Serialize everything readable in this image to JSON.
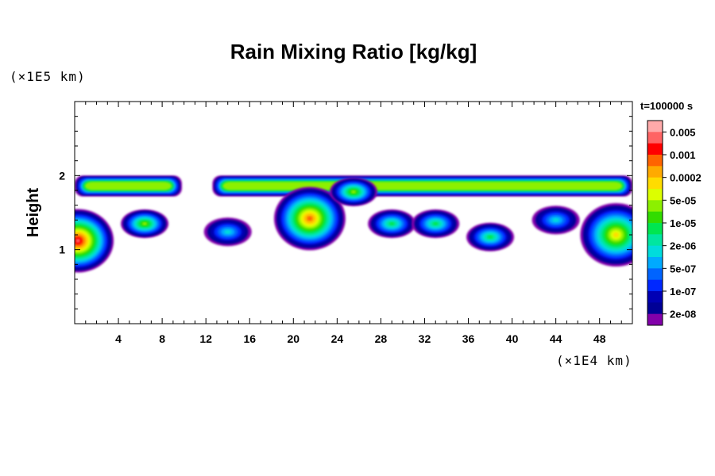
{
  "chart_data": {
    "type": "heatmap",
    "title": "Rain Mixing Ratio [kg/kg]",
    "xlabel": "",
    "ylabel": "Height",
    "x_unit": "(×1E4 km)",
    "y_unit": "(×1E5 km)",
    "time_label": "t=100000 s",
    "xlim": [
      0,
      51
    ],
    "ylim": [
      0,
      3
    ],
    "x_ticks": [
      4,
      8,
      12,
      16,
      20,
      24,
      28,
      32,
      36,
      40,
      44,
      48
    ],
    "y_ticks": [
      1,
      2
    ],
    "colorbar": {
      "labels": [
        "0.005",
        "0.001",
        "0.0002",
        "5e-05",
        "1e-05",
        "2e-06",
        "5e-07",
        "1e-07",
        "2e-08"
      ],
      "colors": [
        "#ffaaaa",
        "#ff6464",
        "#ff0000",
        "#ff6400",
        "#ffaa00",
        "#ffdc00",
        "#dcff00",
        "#8cf000",
        "#32dc00",
        "#00e650",
        "#00e6a0",
        "#00dcdc",
        "#00aaff",
        "#0064ff",
        "#0028ff",
        "#0000b4",
        "#000096",
        "#8200aa"
      ]
    },
    "field": {
      "top_band": {
        "x_range": [
          0,
          51
        ],
        "height_range": [
          1.72,
          2.0
        ],
        "gap_x_range": [
          9.8,
          12.6
        ]
      },
      "cells": [
        {
          "x": 0.3,
          "height": 1.12,
          "level": 0.005
        },
        {
          "x": 6.4,
          "height": 1.35,
          "level": 5e-05
        },
        {
          "x": 14.0,
          "height": 1.24,
          "level": 2e-06
        },
        {
          "x": 21.5,
          "height": 1.42,
          "level": 0.001
        },
        {
          "x": 25.5,
          "height": 1.78,
          "level": 5e-05
        },
        {
          "x": 29.0,
          "height": 1.35,
          "level": 1e-05
        },
        {
          "x": 33.0,
          "height": 1.35,
          "level": 1e-05
        },
        {
          "x": 38.0,
          "height": 1.17,
          "level": 1e-05
        },
        {
          "x": 44.0,
          "height": 1.4,
          "level": 2e-06
        },
        {
          "x": 49.5,
          "height": 1.2,
          "level": 0.0002
        }
      ]
    }
  }
}
